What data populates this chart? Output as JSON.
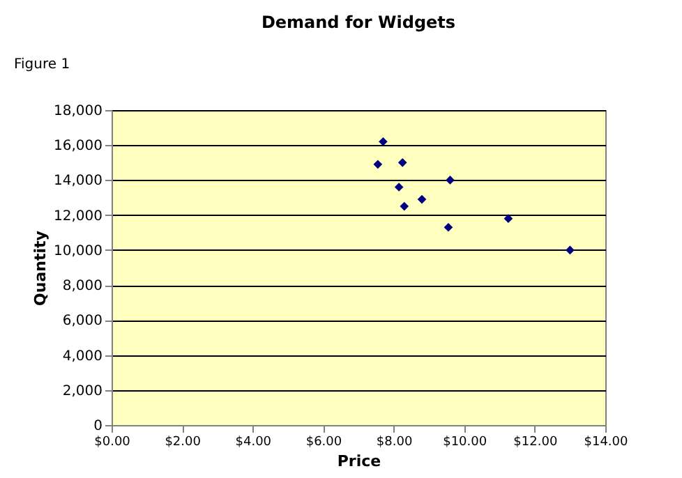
{
  "chart_data": {
    "type": "scatter",
    "title": "Demand for Widgets",
    "xlabel": "Price",
    "ylabel": "Quantity",
    "annotations": [
      "Figure 1"
    ],
    "x": [
      7.7,
      7.55,
      8.25,
      9.6,
      8.15,
      8.8,
      8.3,
      9.55,
      11.25,
      13.0
    ],
    "series": [
      {
        "color": "#000080",
        "values": [
          16200,
          14900,
          15000,
          14000,
          13600,
          12900,
          12500,
          11300,
          11800,
          10000
        ]
      }
    ],
    "xlim": [
      0,
      14
    ],
    "xticks": [
      {
        "value": 0,
        "label": "$0.00"
      },
      {
        "value": 2,
        "label": "$2.00"
      },
      {
        "value": 4,
        "label": "$4.00"
      },
      {
        "value": 6,
        "label": "$6.00"
      },
      {
        "value": 8,
        "label": "$8.00"
      },
      {
        "value": 10,
        "label": "$10.00"
      },
      {
        "value": 12,
        "label": "$12.00"
      },
      {
        "value": 14,
        "label": "$14.00"
      }
    ],
    "ylim": [
      0,
      18000
    ],
    "yticks": [
      {
        "value": 0,
        "label": "0"
      },
      {
        "value": 2000,
        "label": "2,000"
      },
      {
        "value": 4000,
        "label": "4,000"
      },
      {
        "value": 6000,
        "label": "6,000"
      },
      {
        "value": 8000,
        "label": "8,000"
      },
      {
        "value": 10000,
        "label": "10,000"
      },
      {
        "value": 12000,
        "label": "12,000"
      },
      {
        "value": 14000,
        "label": "14,000"
      },
      {
        "value": 16000,
        "label": "16,000"
      },
      {
        "value": 18000,
        "label": "18,000"
      }
    ],
    "grid": "y",
    "marker": "diamond",
    "legend": false
  }
}
